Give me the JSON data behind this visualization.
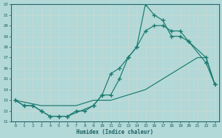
{
  "xlabel": "Humidex (Indice chaleur)",
  "bg_color": "#b2d8d8",
  "grid_color": "#c8d8d0",
  "line_color": "#1a7a6e",
  "xlim": [
    -0.5,
    23.5
  ],
  "ylim": [
    11,
    22
  ],
  "xticks": [
    0,
    1,
    2,
    3,
    4,
    5,
    6,
    7,
    8,
    9,
    10,
    11,
    12,
    13,
    14,
    15,
    16,
    17,
    18,
    19,
    20,
    21,
    22,
    23
  ],
  "yticks": [
    11,
    12,
    13,
    14,
    15,
    16,
    17,
    18,
    19,
    20,
    21,
    22
  ],
  "line1_x": [
    0,
    3,
    7,
    9,
    11,
    13,
    15,
    17,
    19,
    20,
    21,
    22,
    23
  ],
  "line1_y": [
    13,
    12.5,
    12.5,
    13,
    13,
    13.5,
    14,
    15,
    16,
    16.5,
    17,
    17,
    14.5
  ],
  "line2_x": [
    0,
    1,
    2,
    3,
    4,
    5,
    6,
    9,
    10,
    11,
    12,
    13,
    14,
    15,
    16,
    17,
    18,
    19,
    20,
    22,
    23
  ],
  "line2_y": [
    13,
    12.5,
    12.5,
    12,
    11.5,
    11.5,
    11.5,
    12.5,
    13.5,
    15.5,
    16,
    17,
    18,
    19.5,
    20,
    20,
    19.5,
    19.5,
    18.5,
    17,
    14.5
  ],
  "line3_x": [
    0,
    1,
    2,
    3,
    4,
    5,
    6,
    7,
    8,
    9,
    10,
    11,
    12,
    13,
    14,
    15,
    16,
    17,
    18,
    19,
    20,
    22,
    23
  ],
  "line3_y": [
    13,
    12.5,
    12.5,
    12,
    11.5,
    11.5,
    11.5,
    12,
    12,
    12.5,
    13.5,
    13.5,
    15,
    17,
    18,
    22,
    21,
    20.5,
    19,
    19,
    18.5,
    16.5,
    14.5
  ]
}
